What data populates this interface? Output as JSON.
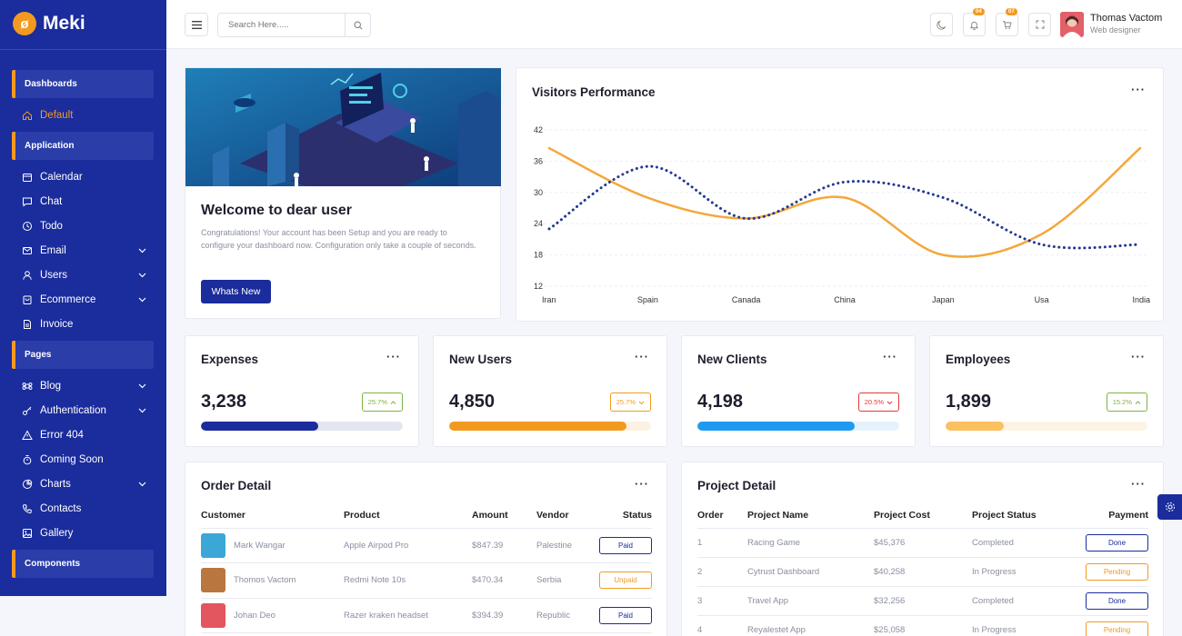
{
  "brand": {
    "name": "Meki",
    "mark": "ø"
  },
  "sidebar": {
    "sections": [
      {
        "title": "Dashboards",
        "items": [
          {
            "label": "Default",
            "icon": "home-icon",
            "active": true
          }
        ]
      },
      {
        "title": "Application",
        "items": [
          {
            "label": "Calendar",
            "icon": "calendar-icon"
          },
          {
            "label": "Chat",
            "icon": "chat-icon"
          },
          {
            "label": "Todo",
            "icon": "clock-icon"
          },
          {
            "label": "Email",
            "icon": "mail-icon",
            "expand": true
          },
          {
            "label": "Users",
            "icon": "user-icon",
            "expand": true
          },
          {
            "label": "Ecommerce",
            "icon": "bag-icon",
            "expand": true
          },
          {
            "label": "Invoice",
            "icon": "file-icon"
          }
        ]
      },
      {
        "title": "Pages",
        "items": [
          {
            "label": "Blog",
            "icon": "command-icon",
            "expand": true
          },
          {
            "label": "Authentication",
            "icon": "key-icon",
            "expand": true
          },
          {
            "label": "Error 404",
            "icon": "warning-icon"
          },
          {
            "label": "Coming Soon",
            "icon": "stopwatch-icon"
          },
          {
            "label": "Charts",
            "icon": "pie-chart-icon",
            "expand": true
          },
          {
            "label": "Contacts",
            "icon": "phone-icon"
          },
          {
            "label": "Gallery",
            "icon": "image-icon"
          }
        ]
      },
      {
        "title": "Components",
        "items": []
      }
    ]
  },
  "header": {
    "search_placeholder": "Search Here.....",
    "notifications_count": "04",
    "cart_count": "07",
    "user_name": "Thomas Vactom",
    "user_role": "Web designer"
  },
  "welcome": {
    "title": "Welcome to dear user",
    "text": "Congratulations! Your account has been Setup and you are ready to configure your dashboard now. Configuration only take a couple of seconds.",
    "button": "Whats New"
  },
  "visitors": {
    "title": "Visitors Performance",
    "chart_data": {
      "type": "line",
      "categories": [
        "Iran",
        "Spain",
        "Canada",
        "China",
        "Japan",
        "Usa",
        "India"
      ],
      "yticks": [
        42,
        36,
        30,
        24,
        18,
        12
      ],
      "ylim": [
        12,
        42
      ],
      "series": [
        {
          "values": [
            38.5,
            29,
            25,
            29,
            18,
            22,
            38.5
          ],
          "color": "#f4a73a",
          "style": "solid"
        },
        {
          "values": [
            23,
            35,
            25,
            32,
            29,
            20,
            20
          ],
          "color": "#25398f",
          "style": "dotted"
        }
      ],
      "grid": true
    }
  },
  "stats": [
    {
      "title": "Expenses",
      "value": "3,238",
      "pct": "25.7%",
      "trend": "up",
      "tone": "green",
      "progress": 0.58,
      "fill": "#1b2c9c",
      "track": "#e4e6ef"
    },
    {
      "title": "New Users",
      "value": "4,850",
      "pct": "25.7%",
      "trend": "down",
      "tone": "orange",
      "progress": 0.88,
      "fill": "#f29a1f",
      "track": "#fdf1e2"
    },
    {
      "title": "New Clients",
      "value": "4,198",
      "pct": "20.5%",
      "trend": "down",
      "tone": "red",
      "progress": 0.78,
      "fill": "#1f9af0",
      "track": "#e5f2fd"
    },
    {
      "title": "Employees",
      "value": "1,899",
      "pct": "15.2%",
      "trend": "up",
      "tone": "green",
      "progress": 0.29,
      "fill": "#fbc05f",
      "track": "#fdf3e5"
    }
  ],
  "orders": {
    "title": "Order Detail",
    "columns": [
      "Customer",
      "Product",
      "Amount",
      "Vendor",
      "Status"
    ],
    "rows": [
      {
        "customer": "Mark Wangar",
        "product": "Apple Airpod Pro",
        "amount": "$847.39",
        "vendor": "Palestine",
        "status": "Paid",
        "tone": "paid",
        "thumb": "#3aa7d6"
      },
      {
        "customer": "Thomos Vactom",
        "product": "Redmi Note 10s",
        "amount": "$470.34",
        "vendor": "Serbia",
        "status": "Unpaid",
        "tone": "unpaid",
        "thumb": "#b9763f"
      },
      {
        "customer": "Johan Deo",
        "product": "Razer kraken headset",
        "amount": "$394.39",
        "vendor": "Republic",
        "status": "Paid",
        "tone": "paid",
        "thumb": "#e3555f"
      }
    ]
  },
  "projects": {
    "title": "Project Detail",
    "columns": [
      "Order",
      "Project Name",
      "Project Cost",
      "Project Status",
      "Payment"
    ],
    "rows": [
      {
        "order": "1",
        "name": "Racing Game",
        "cost": "$45,376",
        "status": "Completed",
        "payment": "Done",
        "tone": "done"
      },
      {
        "order": "2",
        "name": "Cytrust Dashboard",
        "cost": "$40,258",
        "status": "In Progress",
        "payment": "Pending",
        "tone": "pending"
      },
      {
        "order": "3",
        "name": "Travel App",
        "cost": "$32,256",
        "status": "Completed",
        "payment": "Done",
        "tone": "done"
      },
      {
        "order": "4",
        "name": "Reyalestet App",
        "cost": "$25,058",
        "status": "In Progress",
        "payment": "Pending",
        "tone": "pending"
      }
    ]
  }
}
